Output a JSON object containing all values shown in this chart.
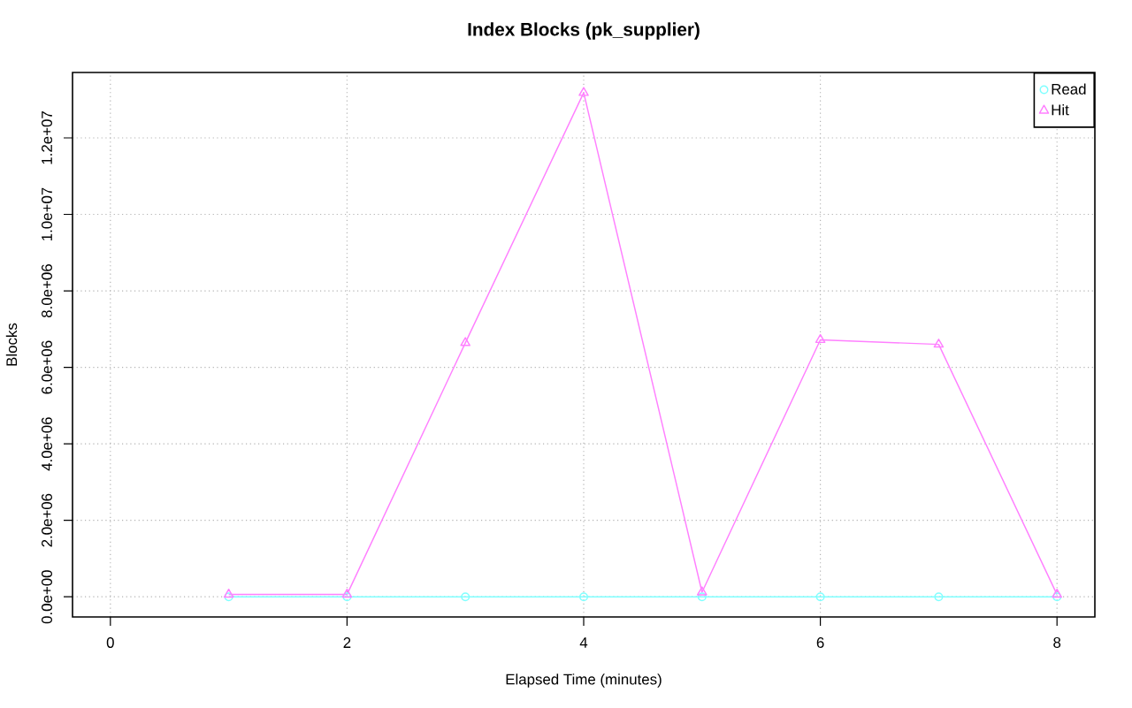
{
  "chart_data": {
    "type": "line",
    "title": "Index Blocks (pk_supplier)",
    "xlabel": "Elapsed Time (minutes)",
    "ylabel": "Blocks",
    "x": [
      1,
      2,
      3,
      4,
      5,
      6,
      7,
      8
    ],
    "series": [
      {
        "name": "Read",
        "color": "#80ffff",
        "marker": "circle",
        "values": [
          0,
          0,
          0,
          0,
          0,
          0,
          0,
          0
        ]
      },
      {
        "name": "Hit",
        "color": "#ff80ff",
        "marker": "triangle",
        "values": [
          60000,
          60000,
          6640000,
          13180000,
          120000,
          6720000,
          6600000,
          60000
        ]
      }
    ],
    "xlim": [
      -0.32,
      8.32
    ],
    "ylim": [
      -527000,
      13710000
    ],
    "xticks": [
      0,
      2,
      4,
      6,
      8
    ],
    "yticks": [
      {
        "value": 0,
        "label": "0.0e+00"
      },
      {
        "value": 2000000,
        "label": "2.0e+06"
      },
      {
        "value": 4000000,
        "label": "4.0e+06"
      },
      {
        "value": 6000000,
        "label": "6.0e+06"
      },
      {
        "value": 8000000,
        "label": "8.0e+06"
      },
      {
        "value": 10000000,
        "label": "1.0e+07"
      },
      {
        "value": 12000000,
        "label": "1.2e+07"
      }
    ],
    "grid": true,
    "legend": "top right",
    "line_style": "solid"
  }
}
